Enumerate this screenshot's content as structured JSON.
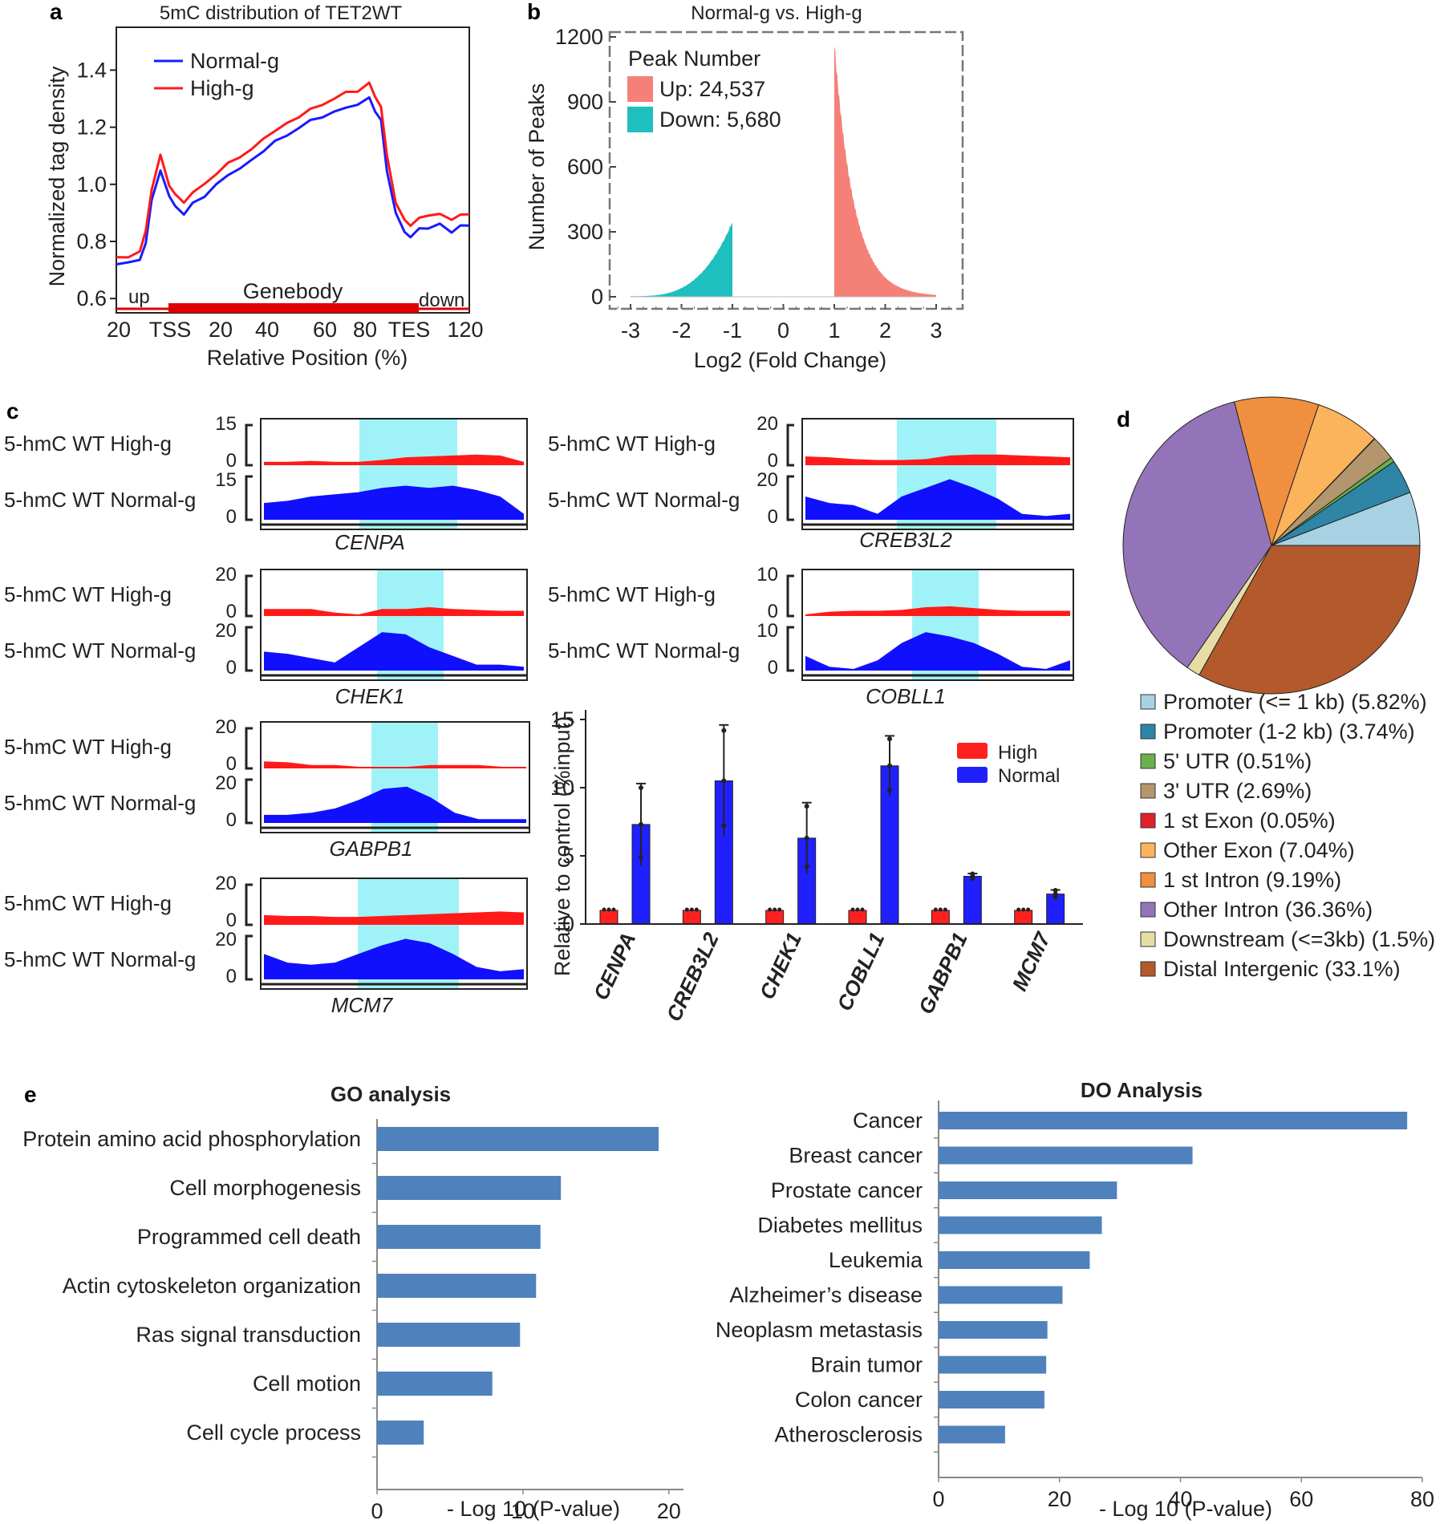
{
  "figure": {
    "panels": {
      "a": "a",
      "b": "b",
      "c": "c",
      "d": "d",
      "e": "e"
    }
  },
  "chart_data": [
    {
      "panel": "a",
      "type": "line",
      "title": "5mC distribution of TET2WT",
      "xlabel": "Relative Position (%)",
      "ylabel": "Normalized tag density",
      "x_tick_labels": [
        "20",
        "TSS",
        "20",
        "40",
        "60",
        "80",
        "TES",
        "120"
      ],
      "y_ticks": [
        "0.6",
        "0.8",
        "1.0",
        "1.2",
        "1.4"
      ],
      "ylim": [
        0.55,
        1.55
      ],
      "region_labels": {
        "up": "up",
        "genebody": "Genebody",
        "down": "down"
      },
      "colors": {
        "normal": "#1a1aff",
        "high": "#ff1a1a",
        "bar": "#e00000"
      },
      "series": [
        {
          "name": "Normal-g",
          "x": [
            0,
            4,
            8,
            10,
            12,
            15,
            18,
            20,
            23,
            26,
            30,
            34,
            38,
            42,
            46,
            50,
            54,
            58,
            62,
            66,
            70,
            74,
            78,
            82,
            86,
            88,
            90,
            92,
            95,
            98,
            100,
            103,
            106,
            110,
            114,
            117,
            120
          ],
          "values": [
            0.72,
            0.73,
            0.73,
            0.8,
            0.94,
            1.05,
            0.96,
            0.92,
            0.9,
            0.93,
            0.96,
            1.0,
            1.03,
            1.06,
            1.08,
            1.12,
            1.15,
            1.17,
            1.2,
            1.22,
            1.24,
            1.25,
            1.27,
            1.28,
            1.3,
            1.26,
            1.22,
            1.05,
            0.9,
            0.83,
            0.82,
            0.84,
            0.85,
            0.86,
            0.83,
            0.86,
            0.85
          ]
        },
        {
          "name": "High-g",
          "x": [
            0,
            4,
            8,
            10,
            12,
            15,
            18,
            20,
            23,
            26,
            30,
            34,
            38,
            42,
            46,
            50,
            54,
            58,
            62,
            66,
            70,
            74,
            78,
            82,
            86,
            88,
            90,
            92,
            95,
            98,
            100,
            103,
            106,
            110,
            114,
            117,
            120
          ],
          "values": [
            0.74,
            0.75,
            0.76,
            0.84,
            0.98,
            1.1,
            1.0,
            0.96,
            0.94,
            0.97,
            1.0,
            1.04,
            1.07,
            1.1,
            1.12,
            1.16,
            1.19,
            1.21,
            1.24,
            1.26,
            1.28,
            1.3,
            1.32,
            1.33,
            1.35,
            1.31,
            1.27,
            1.1,
            0.94,
            0.87,
            0.86,
            0.88,
            0.89,
            0.9,
            0.87,
            0.9,
            0.89
          ]
        }
      ]
    },
    {
      "panel": "b",
      "type": "bar",
      "title": "Normal-g vs. High-g",
      "xlabel": "Log2 (Fold Change)",
      "ylabel": "Number of Peaks",
      "xlim": [
        -3.3,
        3.3
      ],
      "ylim": [
        0,
        1200
      ],
      "x_ticks": [
        "-3",
        "-2",
        "-1",
        "0",
        "1",
        "2",
        "3"
      ],
      "y_ticks": [
        "0",
        "300",
        "600",
        "900",
        "1200"
      ],
      "legend_title": "Peak Number",
      "legend": [
        {
          "name": "Up: 24,537",
          "color": "#f58078"
        },
        {
          "name": "Down: 5,680",
          "color": "#1fbfbf"
        }
      ],
      "series": [
        {
          "name": "Up",
          "range": [
            1.0,
            3.0
          ],
          "peak": 1180,
          "color": "#f58078"
        },
        {
          "name": "Down",
          "range": [
            -3.0,
            -1.0
          ],
          "peak": 340,
          "color": "#1fbfbf"
        }
      ]
    },
    {
      "panel": "c",
      "type": "bar",
      "title": "",
      "xlabel": "",
      "ylabel": "Relative to control (%input)",
      "ylim": [
        0,
        16
      ],
      "y_ticks": [
        "0",
        "5",
        "10",
        "15"
      ],
      "categories": [
        "CENPA",
        "CREB3L2",
        "CHEK1",
        "COBLL1",
        "GABPB1",
        "MCM7"
      ],
      "series": [
        {
          "name": "High",
          "values": [
            1,
            1,
            1,
            1,
            1,
            1
          ],
          "errors": [
            0.1,
            0.1,
            0.1,
            0.1,
            0.1,
            0.1
          ],
          "color": "#ff2020"
        },
        {
          "name": "Normal",
          "values": [
            7.3,
            10.5,
            6.3,
            11.6,
            3.5,
            2.2
          ],
          "errors": [
            3.0,
            4.1,
            2.6,
            2.2,
            0.2,
            0.3
          ],
          "color": "#2020ff"
        }
      ]
    },
    {
      "panel": "d",
      "type": "pie",
      "title": "",
      "slices": [
        {
          "label": "Promoter (<= 1 kb) (5.82%)",
          "value": 5.82,
          "color": "#a8d2e4"
        },
        {
          "label": "Promoter (1-2 kb) (3.74%)",
          "value": 3.74,
          "color": "#2e85a5"
        },
        {
          "label": "5' UTR (0.51%)",
          "value": 0.51,
          "color": "#6ab04c"
        },
        {
          "label": "3' UTR (2.69%)",
          "value": 2.69,
          "color": "#b3966e"
        },
        {
          "label": "1 st Exon (0.05%)",
          "value": 0.05,
          "color": "#e0202a"
        },
        {
          "label": "Other Exon (7.04%)",
          "value": 7.04,
          "color": "#fbb45c"
        },
        {
          "label": "1 st Intron (9.19%)",
          "value": 9.19,
          "color": "#ef8f3f"
        },
        {
          "label": "Other Intron (36.36%)",
          "value": 36.36,
          "color": "#9474b8"
        },
        {
          "label": "Downstream (<=3kb) (1.5%)",
          "value": 1.5,
          "color": "#e6dda6"
        },
        {
          "label": "Distal Intergenic (33.1%)",
          "value": 33.1,
          "color": "#b3592b"
        }
      ]
    },
    {
      "panel": "e-go",
      "type": "bar",
      "title": "GO analysis",
      "xlabel": "- Log 10 (P-value)",
      "xlim": [
        0,
        21
      ],
      "x_ticks": [
        "0",
        "10",
        "20"
      ],
      "categories": [
        "Protein amino acid phosphorylation",
        "Cell morphogenesis",
        "Programmed cell death",
        "Actin cytoskeleton organization",
        "Ras signal transduction",
        "Cell motion",
        "Cell cycle process"
      ],
      "values": [
        19.3,
        12.6,
        11.2,
        10.9,
        9.8,
        7.9,
        3.2
      ],
      "color": "#4f81bd"
    },
    {
      "panel": "e-do",
      "type": "bar",
      "title": "DO Analysis",
      "xlabel": "- Log 10 (P-value)",
      "xlim": [
        0,
        80
      ],
      "x_ticks": [
        "0",
        "20",
        "40",
        "60",
        "80"
      ],
      "categories": [
        "Cancer",
        "Breast cancer",
        "Prostate cancer",
        "Diabetes mellitus",
        "Leukemia",
        "Alzheimer’s disease",
        "Neoplasm metastasis",
        "Brain tumor",
        "Colon cancer",
        "Atherosclerosis"
      ],
      "values": [
        77.5,
        42,
        29.5,
        27,
        25,
        20.5,
        18,
        17.8,
        17.5,
        11
      ],
      "color": "#4f81bd"
    }
  ],
  "tracks": {
    "high_label": "5-hmC WT High-g",
    "normal_label": "5-hmC WT Normal-g",
    "genes": [
      {
        "name": "CENPA",
        "high_max": "15",
        "normal_max": "15",
        "zero": "0"
      },
      {
        "name": "CREB3L2",
        "high_max": "20",
        "normal_max": "20",
        "zero": "0"
      },
      {
        "name": "CHEK1",
        "high_max": "20",
        "normal_max": "20",
        "zero": "0"
      },
      {
        "name": "COBLL1",
        "high_max": "10",
        "normal_max": "10",
        "zero": "0"
      },
      {
        "name": "GABPB1",
        "high_max": "20",
        "normal_max": "20",
        "zero": "0"
      },
      {
        "name": "MCM7",
        "high_max": "20",
        "normal_max": "20",
        "zero": "0"
      }
    ]
  }
}
